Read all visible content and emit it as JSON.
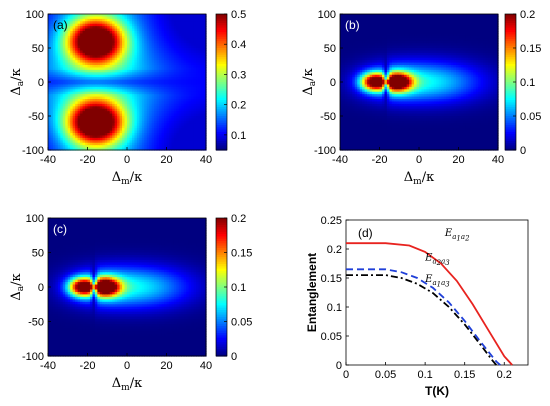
{
  "chart_data": [
    {
      "panel_label": "(a)",
      "type": "heatmap",
      "xlabel": {
        "main": "Δ",
        "sub": "m",
        "suffix": "/κ"
      },
      "ylabel": {
        "main": "Δ",
        "sub": "a",
        "suffix": "/κ"
      },
      "xlim": [
        -40,
        40
      ],
      "ylim": [
        -100,
        100
      ],
      "xticks": [
        "-40",
        "-20",
        "0",
        "20",
        "40"
      ],
      "yticks": [
        "-100",
        "-50",
        "0",
        "50",
        "100"
      ],
      "colorbar": {
        "min": 0.05,
        "max": 0.5,
        "ticks": [
          "0.1",
          "0.2",
          "0.3",
          "0.4",
          "0.5"
        ]
      },
      "shape": "two-lobes-vertical",
      "peak": {
        "x": -16,
        "y": 60,
        "value": 0.5
      },
      "peak2": {
        "x": -16,
        "y": -60,
        "value": 0.5
      }
    },
    {
      "panel_label": "(b)",
      "type": "heatmap",
      "xlabel": {
        "main": "Δ",
        "sub": "m",
        "suffix": "/κ"
      },
      "ylabel": {
        "main": "Δ",
        "sub": "a",
        "suffix": "/κ"
      },
      "xlim": [
        -40,
        40
      ],
      "ylim": [
        -100,
        100
      ],
      "xticks": [
        "-40",
        "-20",
        "0",
        "20",
        "40"
      ],
      "yticks": [
        "-100",
        "-50",
        "0",
        "50",
        "100"
      ],
      "colorbar": {
        "min": 0,
        "max": 0.2,
        "ticks": [
          "0",
          "0.05",
          "0.1",
          "0.15",
          "0.2"
        ]
      },
      "shape": "two-lobes-horizontal",
      "peak": {
        "x": -22,
        "y": 0,
        "value": 0.2
      },
      "peak2": {
        "x": -11,
        "y": 0,
        "value": 0.2
      }
    },
    {
      "panel_label": "(c)",
      "type": "heatmap",
      "xlabel": {
        "main": "Δ",
        "sub": "m",
        "suffix": "/κ"
      },
      "ylabel": {
        "main": "Δ",
        "sub": "a",
        "suffix": "/κ"
      },
      "xlim": [
        -40,
        40
      ],
      "ylim": [
        -100,
        100
      ],
      "xticks": [
        "-40",
        "-20",
        "0",
        "20",
        "40"
      ],
      "yticks": [
        "-100",
        "-50",
        "0",
        "50",
        "100"
      ],
      "colorbar": {
        "min": 0,
        "max": 0.2,
        "ticks": [
          "0",
          "0.05",
          "0.1",
          "0.15",
          "0.2"
        ]
      },
      "shape": "two-lobes-horizontal",
      "peak": {
        "x": -22,
        "y": 0,
        "value": 0.2
      },
      "peak2": {
        "x": -11,
        "y": 0,
        "value": 0.2
      }
    },
    {
      "panel_label": "(d)",
      "type": "line",
      "xlabel": "T(K)",
      "ylabel": "Entanglement",
      "xlim": [
        0,
        0.23
      ],
      "ylim": [
        0,
        0.25
      ],
      "xticks": [
        "0",
        "0.05",
        "0.1",
        "0.15",
        "0.2"
      ],
      "yticks": [
        "0",
        "0.05",
        "0.1",
        "0.15",
        "0.2",
        "0.25"
      ],
      "series": [
        {
          "name": "E",
          "sub1": "a",
          "sub1n": "1",
          "sub2": "a",
          "sub2n": "2",
          "color": "#e8231f",
          "dash": "solid",
          "x": [
            0,
            0.05,
            0.08,
            0.1,
            0.12,
            0.14,
            0.16,
            0.18,
            0.2,
            0.21
          ],
          "y": [
            0.21,
            0.21,
            0.206,
            0.195,
            0.175,
            0.145,
            0.105,
            0.06,
            0.015,
            0
          ]
        },
        {
          "name": "E",
          "sub1": "a",
          "sub1n": "2",
          "sub2": "a",
          "sub2n": "3",
          "color": "#1f3fd8",
          "dash": "dashed",
          "x": [
            0,
            0.05,
            0.07,
            0.09,
            0.11,
            0.13,
            0.15,
            0.17,
            0.19,
            0.195
          ],
          "y": [
            0.165,
            0.165,
            0.16,
            0.15,
            0.133,
            0.108,
            0.076,
            0.04,
            0.006,
            0
          ]
        },
        {
          "name": "E",
          "sub1": "a",
          "sub1n": "1",
          "sub2": "a",
          "sub2n": "3",
          "color": "#000000",
          "dash": "dashdot",
          "x": [
            0,
            0.05,
            0.07,
            0.09,
            0.11,
            0.13,
            0.15,
            0.17,
            0.185,
            0.19
          ],
          "y": [
            0.155,
            0.155,
            0.15,
            0.14,
            0.124,
            0.1,
            0.07,
            0.035,
            0.008,
            0
          ]
        }
      ]
    }
  ]
}
